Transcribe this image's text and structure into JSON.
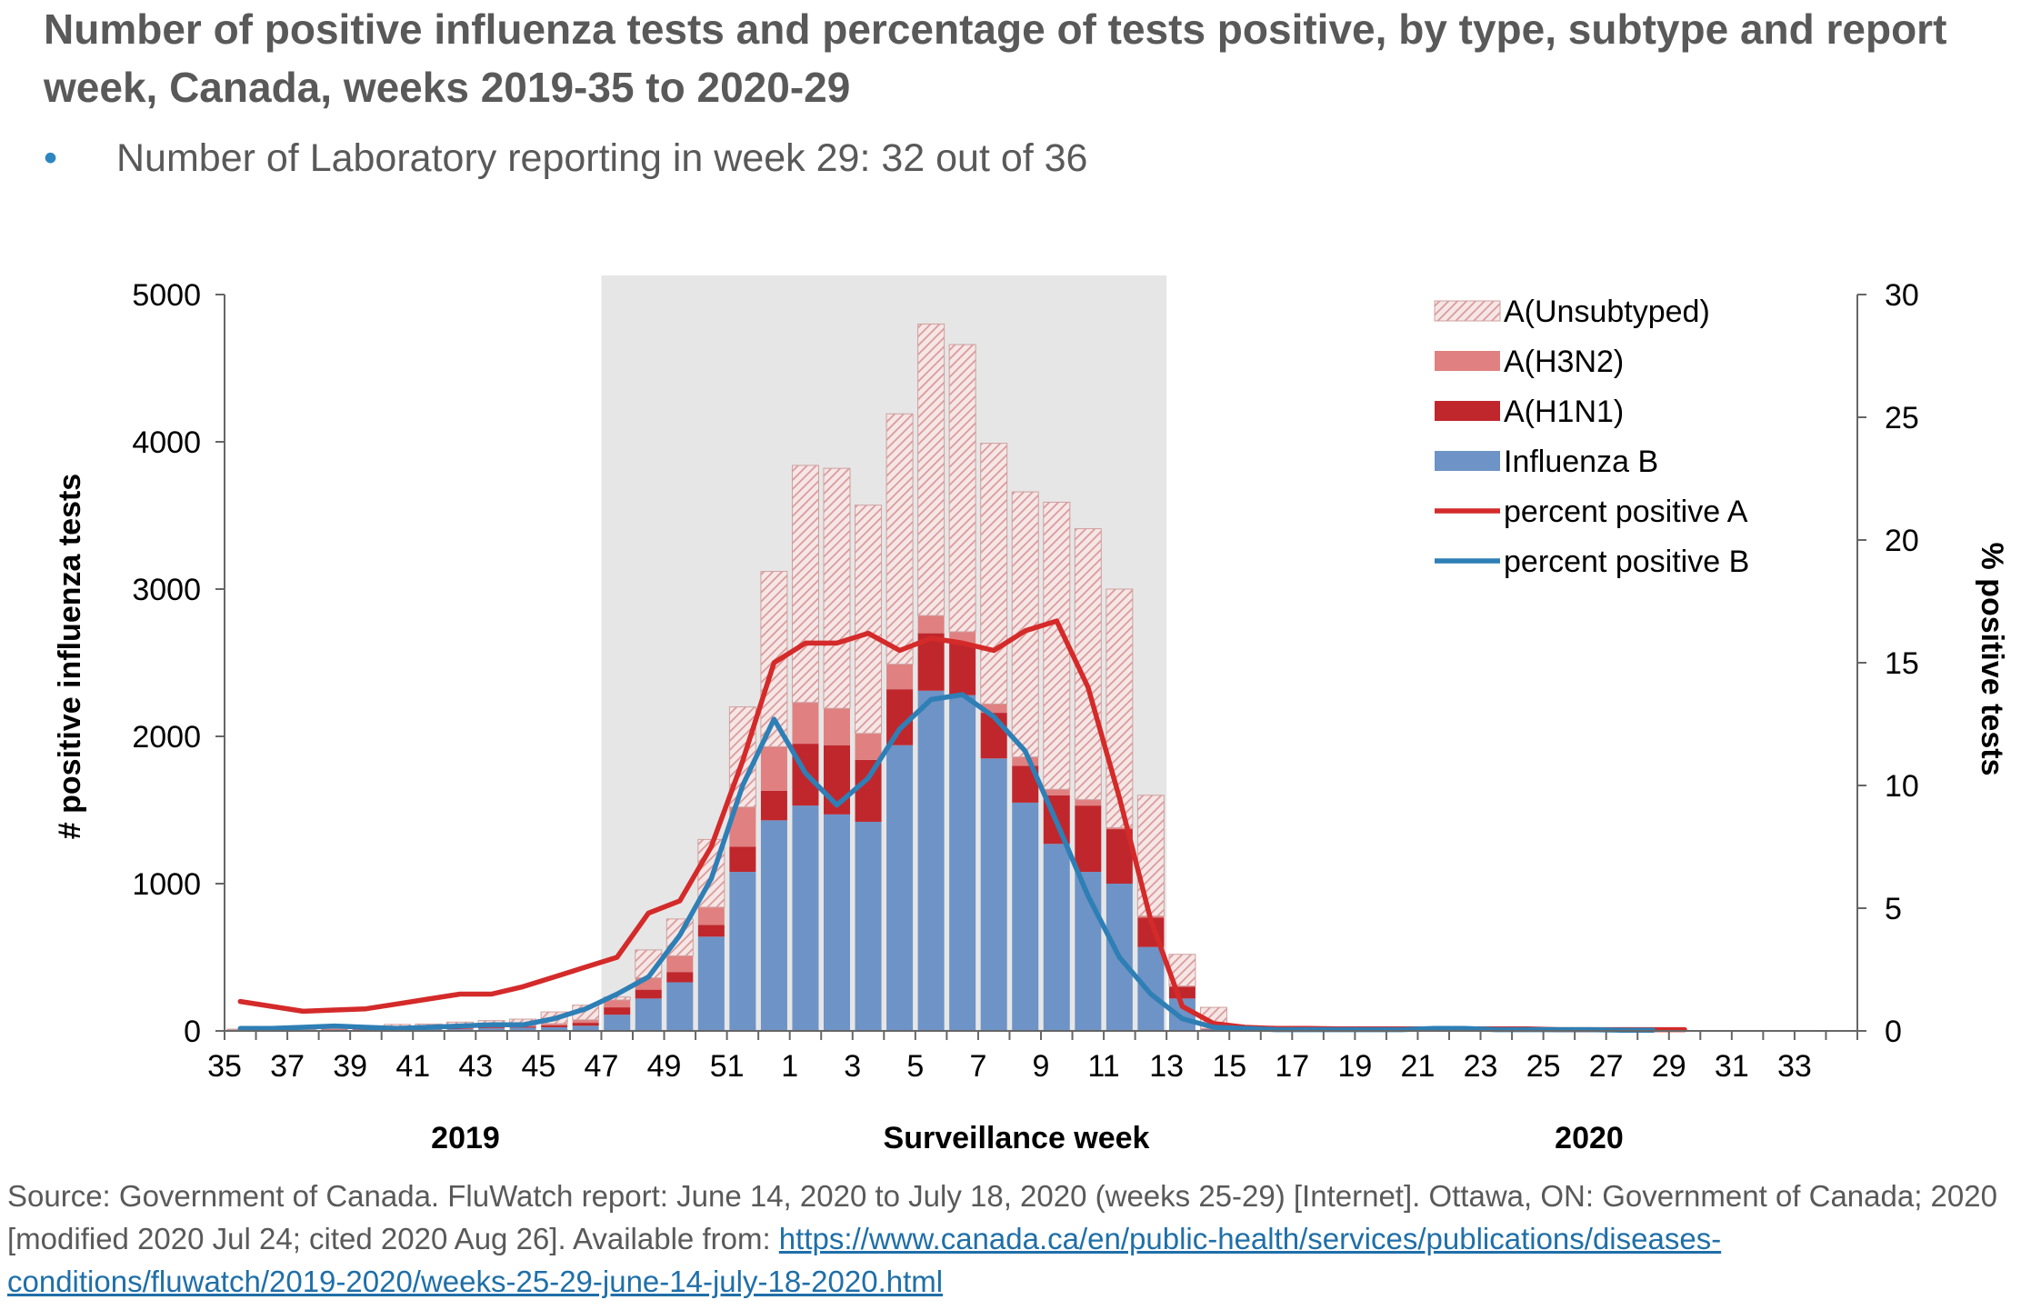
{
  "title": "Number of positive influenza tests and percentage of tests positive, by type, subtype and report week, Canada, weeks 2019-35 to 2020-29",
  "bullet": "Number of Laboratory reporting in week 29: 32 out of 36",
  "source": {
    "text": "Source: Government of Canada. FluWatch report: June 14, 2020 to July 18, 2020 (weeks 25-29) [Internet]. Ottawa, ON: Government of Canada; 2020 [modified 2020 Jul 24; cited 2020 Aug 26]. Available from: ",
    "link": "https://www.canada.ca/en/public-health/services/publications/diseases-conditions/fluwatch/2019-2020/weeks-25-29-june-14-july-18-2020.html"
  },
  "colors": {
    "unsubtyped_hatch": "#d99a9a",
    "h3n2": "#e08080",
    "h1n1": "#c0272d",
    "influenza_b": "#6e93c6",
    "percent_a": "#d42a2a",
    "percent_b": "#2e7fb5",
    "season_shading": "#e6e6e6"
  },
  "chart_data": {
    "type": "bar",
    "stacked": true,
    "categories": [
      "35",
      "36",
      "37",
      "38",
      "39",
      "40",
      "41",
      "42",
      "43",
      "44",
      "45",
      "46",
      "47",
      "48",
      "49",
      "50",
      "51",
      "52",
      "1",
      "2",
      "3",
      "4",
      "5",
      "6",
      "7",
      "8",
      "9",
      "10",
      "11",
      "12",
      "13",
      "14",
      "15",
      "16",
      "17",
      "18",
      "19",
      "20",
      "21",
      "22",
      "23",
      "24",
      "25",
      "26",
      "27",
      "28",
      "29",
      "30",
      "31",
      "32",
      "33",
      "34"
    ],
    "tick_labels": [
      "35",
      "37",
      "39",
      "41",
      "43",
      "45",
      "47",
      "49",
      "51",
      "1",
      "3",
      "5",
      "7",
      "9",
      "11",
      "13",
      "15",
      "17",
      "19",
      "21",
      "23",
      "25",
      "27",
      "29",
      "31",
      "33"
    ],
    "year_labels": [
      "2019",
      "2020"
    ],
    "xlabel": "Surveillance  week",
    "ylabel": "# positive influenza tests",
    "y2label": "% positive tests",
    "ylim": [
      0,
      5000
    ],
    "yticks": [
      0,
      1000,
      2000,
      3000,
      4000,
      5000
    ],
    "y2lim": [
      0,
      30
    ],
    "y2ticks": [
      0,
      5,
      10,
      15,
      20,
      25,
      30
    ],
    "shaded_weeks": [
      "47",
      "13"
    ],
    "legend_position": "top-right",
    "series": [
      {
        "name": "Influenza B",
        "values": [
          5,
          8,
          8,
          8,
          8,
          10,
          10,
          12,
          18,
          22,
          25,
          35,
          110,
          220,
          330,
          640,
          1080,
          1430,
          1530,
          1470,
          1420,
          1940,
          2310,
          2280,
          1850,
          1550,
          1270,
          1080,
          1000,
          570,
          220,
          10,
          5,
          3,
          2,
          2,
          2,
          2,
          2,
          2,
          1,
          1,
          1,
          1,
          1,
          1,
          0,
          0,
          0,
          0,
          0,
          0
        ]
      },
      {
        "name": "A(H1N1)",
        "values": [
          1,
          1,
          1,
          2,
          2,
          3,
          3,
          4,
          6,
          8,
          12,
          20,
          50,
          60,
          70,
          80,
          170,
          200,
          420,
          470,
          420,
          380,
          390,
          350,
          310,
          250,
          330,
          450,
          370,
          200,
          80,
          5,
          2,
          1,
          1,
          1,
          1,
          1,
          0,
          0,
          0,
          0,
          0,
          0,
          0,
          0,
          0,
          0,
          0,
          0,
          0,
          0
        ]
      },
      {
        "name": "A(H3N2)",
        "values": [
          1,
          1,
          1,
          2,
          2,
          3,
          4,
          4,
          6,
          8,
          12,
          20,
          50,
          80,
          110,
          120,
          270,
          300,
          280,
          250,
          180,
          170,
          120,
          80,
          60,
          60,
          40,
          40,
          10,
          10,
          5,
          1,
          0,
          0,
          0,
          0,
          0,
          0,
          0,
          0,
          0,
          0,
          0,
          0,
          0,
          0,
          0,
          0,
          0,
          0,
          0,
          0
        ]
      },
      {
        "name": "A(Unsubtyped)",
        "values": [
          5,
          8,
          10,
          12,
          18,
          28,
          30,
          40,
          40,
          42,
          80,
          100,
          20,
          190,
          250,
          460,
          680,
          1190,
          1610,
          1630,
          1550,
          1700,
          1980,
          1950,
          1770,
          1800,
          1950,
          1840,
          1620,
          820,
          215,
          144,
          5,
          3,
          3,
          3,
          3,
          3,
          3,
          3,
          2,
          2,
          2,
          2,
          2,
          1,
          0,
          0,
          0,
          0,
          0,
          0
        ]
      }
    ],
    "lines": [
      {
        "name": "percent positive A",
        "axis": "right",
        "values": [
          1.2,
          1.0,
          0.8,
          0.85,
          0.9,
          1.1,
          1.3,
          1.5,
          1.5,
          1.8,
          2.2,
          2.6,
          3.0,
          4.8,
          5.3,
          7.5,
          11.0,
          15.0,
          15.8,
          15.8,
          16.2,
          15.5,
          16.0,
          15.8,
          15.5,
          16.3,
          16.7,
          14.0,
          9.5,
          4.5,
          1.0,
          0.3,
          0.15,
          0.1,
          0.1,
          0.08,
          0.08,
          0.08,
          0.08,
          0.08,
          0.08,
          0.08,
          0.05,
          0.05,
          0.05,
          0.05,
          0.05,
          null,
          null,
          null,
          null,
          null
        ]
      },
      {
        "name": "percent positive B",
        "axis": "right",
        "values": [
          0.1,
          0.1,
          0.15,
          0.2,
          0.15,
          0.1,
          0.15,
          0.2,
          0.25,
          0.25,
          0.5,
          0.9,
          1.5,
          2.2,
          3.9,
          6.2,
          10.0,
          12.7,
          10.5,
          9.2,
          10.3,
          12.3,
          13.5,
          13.7,
          12.8,
          11.4,
          8.5,
          5.5,
          3.0,
          1.5,
          0.5,
          0.15,
          0.1,
          0.05,
          0.05,
          0.05,
          0.05,
          0.05,
          0.1,
          0.1,
          0.05,
          0.05,
          0.05,
          0.05,
          0.03,
          0.03,
          null,
          null,
          null,
          null,
          null,
          null
        ]
      }
    ]
  }
}
